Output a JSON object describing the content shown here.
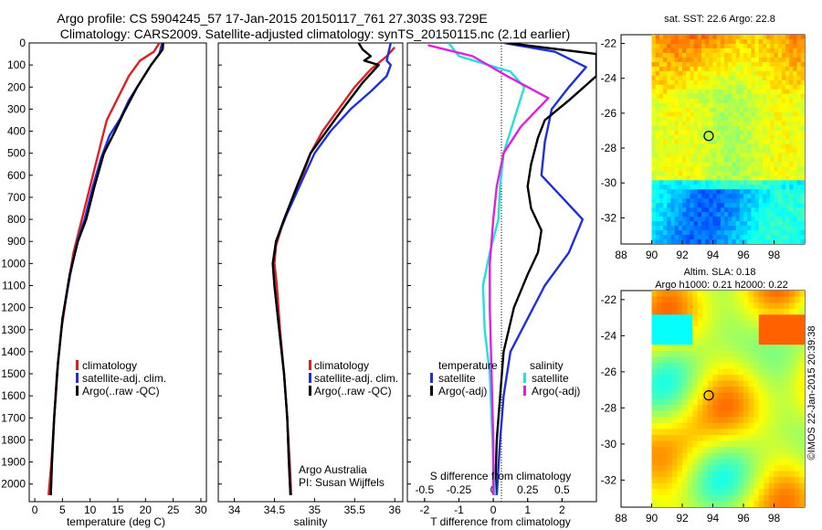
{
  "title": {
    "line1": "Argo profile: CS 5904245_57 17-Jan-2015 20150117_761 27.303S 93.729E",
    "line2": "Climatology: CARS2009. Satellite-adjusted climatology: synTS_20150115.nc (2.1d earlier)"
  },
  "colors": {
    "climatology": "#e02020",
    "satellite": "#1f2fe0",
    "argo": "#000000",
    "sat_salinity": "#20e0e0",
    "argo_salinity": "#e020e0"
  },
  "chart_data": [
    {
      "type": "line",
      "panel": "temperature",
      "xlabel": "temperature (deg C)",
      "ylabel": "",
      "xlim": [
        -1,
        31
      ],
      "ylim": [
        2080,
        0
      ],
      "xticks": [
        "0",
        "5",
        "10",
        "15",
        "20",
        "25",
        "30"
      ],
      "yticks": [
        "0",
        "100",
        "200",
        "300",
        "400",
        "500",
        "600",
        "700",
        "800",
        "900",
        "1000",
        "1100",
        "1200",
        "1300",
        "1400",
        "1500",
        "1600",
        "1700",
        "1800",
        "1900",
        "2000"
      ],
      "legend": [
        "climatology",
        "satellite-adj. clim.",
        "Argo(..raw -QC)"
      ],
      "series": [
        {
          "name": "climatology",
          "color": "#e02020",
          "points": [
            [
              22.5,
              0
            ],
            [
              21.5,
              40
            ],
            [
              19,
              80
            ],
            [
              17,
              150
            ],
            [
              15,
              250
            ],
            [
              13,
              350
            ],
            [
              12,
              450
            ],
            [
              11,
              550
            ],
            [
              9.5,
              700
            ],
            [
              8,
              850
            ],
            [
              7,
              950
            ],
            [
              6,
              1100
            ],
            [
              4.8,
              1300
            ],
            [
              4,
              1500
            ],
            [
              3.5,
              1700
            ],
            [
              3,
              1900
            ],
            [
              2.5,
              2050
            ]
          ]
        },
        {
          "name": "satellite-adj. clim.",
          "color": "#1f2fe0",
          "points": [
            [
              23,
              0
            ],
            [
              22.5,
              50
            ],
            [
              21,
              100
            ],
            [
              19,
              180
            ],
            [
              17,
              260
            ],
            [
              15.5,
              340
            ],
            [
              13.5,
              420
            ],
            [
              12,
              520
            ],
            [
              10.5,
              650
            ],
            [
              9,
              800
            ],
            [
              7.7,
              900
            ],
            [
              6.4,
              1050
            ],
            [
              5,
              1250
            ],
            [
              4.2,
              1450
            ],
            [
              3.5,
              1700
            ],
            [
              3.1,
              1900
            ],
            [
              2.9,
              2050
            ]
          ]
        },
        {
          "name": "Argo(..raw -QC)",
          "color": "#000000",
          "points": [
            [
              23.2,
              0
            ],
            [
              23.1,
              30
            ],
            [
              21,
              100
            ],
            [
              18.5,
              200
            ],
            [
              16,
              320
            ],
            [
              14.5,
              400
            ],
            [
              12.5,
              500
            ],
            [
              10.8,
              650
            ],
            [
              9.3,
              800
            ],
            [
              7.8,
              900
            ],
            [
              6.3,
              1050
            ],
            [
              5,
              1250
            ],
            [
              4.2,
              1450
            ],
            [
              3.5,
              1700
            ],
            [
              3.1,
              1900
            ],
            [
              2.9,
              2050
            ]
          ]
        }
      ]
    },
    {
      "type": "line",
      "panel": "salinity",
      "xlabel": "salinity",
      "ylabel": "",
      "xlim": [
        33.8,
        36.1
      ],
      "ylim": [
        2080,
        0
      ],
      "xticks": [
        "34",
        "34.5",
        "35",
        "35.5",
        "36"
      ],
      "legend": [
        "climatology",
        "satellite-adj. clim.",
        "Argo(..raw -QC)"
      ],
      "annotation": [
        "Argo Australia",
        "PI: Susan Wijffels"
      ],
      "series": [
        {
          "name": "climatology",
          "color": "#e02020",
          "points": [
            [
              36.0,
              20
            ],
            [
              35.9,
              60
            ],
            [
              35.7,
              120
            ],
            [
              35.5,
              200
            ],
            [
              35.3,
              300
            ],
            [
              35.1,
              400
            ],
            [
              34.95,
              500
            ],
            [
              34.8,
              650
            ],
            [
              34.62,
              800
            ],
            [
              34.52,
              920
            ],
            [
              34.5,
              1000
            ],
            [
              34.53,
              1100
            ],
            [
              34.57,
              1300
            ],
            [
              34.62,
              1500
            ],
            [
              34.66,
              1700
            ],
            [
              34.69,
              1900
            ],
            [
              34.71,
              2050
            ]
          ]
        },
        {
          "name": "satellite-adj. clim.",
          "color": "#1f2fe0",
          "points": [
            [
              35.95,
              0
            ],
            [
              35.9,
              80
            ],
            [
              35.95,
              100
            ],
            [
              35.9,
              150
            ],
            [
              35.7,
              220
            ],
            [
              35.45,
              300
            ],
            [
              35.2,
              400
            ],
            [
              35.0,
              500
            ],
            [
              34.85,
              620
            ],
            [
              34.65,
              780
            ],
            [
              34.52,
              900
            ],
            [
              34.48,
              1000
            ],
            [
              34.5,
              1100
            ],
            [
              34.56,
              1300
            ],
            [
              34.62,
              1500
            ],
            [
              34.66,
              1700
            ],
            [
              34.68,
              1900
            ],
            [
              34.7,
              2050
            ]
          ]
        },
        {
          "name": "Argo(..raw -QC)",
          "color": "#000000",
          "points": [
            [
              35.55,
              0
            ],
            [
              35.6,
              30
            ],
            [
              35.7,
              60
            ],
            [
              35.62,
              80
            ],
            [
              35.8,
              100
            ],
            [
              35.6,
              180
            ],
            [
              35.35,
              300
            ],
            [
              35.15,
              400
            ],
            [
              34.95,
              500
            ],
            [
              34.78,
              650
            ],
            [
              34.62,
              800
            ],
            [
              34.52,
              900
            ],
            [
              34.48,
              1000
            ],
            [
              34.5,
              1100
            ],
            [
              34.56,
              1300
            ],
            [
              34.62,
              1500
            ],
            [
              34.66,
              1700
            ],
            [
              34.68,
              1900
            ],
            [
              34.7,
              2050
            ]
          ]
        }
      ]
    },
    {
      "type": "line",
      "panel": "difference",
      "xlabel": "T difference from climatology",
      "xlabel_top": "S difference from climatology",
      "ylabel": "",
      "xlim": [
        -2.5,
        3
      ],
      "ylim": [
        2080,
        0
      ],
      "xticks": [
        "-2",
        "-1",
        "0",
        "1",
        "2"
      ],
      "s_ticks": [
        "-0.5",
        "-0.25",
        "0",
        "0.25",
        "0.5"
      ],
      "legend": {
        "temperature": "temperature",
        "salinity": "salinity",
        "entries": [
          "satellite",
          "Argo(-adj)",
          "satellite",
          "Argo(-adj)"
        ]
      },
      "series": [
        {
          "name": "temperature satellite",
          "color": "#1f2fe0",
          "points": [
            [
              0.3,
              0
            ],
            [
              1.8,
              40
            ],
            [
              2.7,
              110
            ],
            [
              2.2,
              200
            ],
            [
              1.7,
              300
            ],
            [
              1.5,
              450
            ],
            [
              1.4,
              600
            ],
            [
              2.0,
              700
            ],
            [
              2.6,
              800
            ],
            [
              2.2,
              950
            ],
            [
              1.5,
              1100
            ],
            [
              1.0,
              1250
            ],
            [
              0.5,
              1400
            ],
            [
              0.3,
              1600
            ],
            [
              0.2,
              1800
            ],
            [
              0.1,
              2050
            ]
          ]
        },
        {
          "name": "temperature Argo(-adj)",
          "color": "#000000",
          "points": [
            [
              0.4,
              0
            ],
            [
              3.0,
              50
            ],
            [
              3.0,
              150
            ],
            [
              2.2,
              260
            ],
            [
              1.5,
              350
            ],
            [
              1.3,
              430
            ],
            [
              1.1,
              550
            ],
            [
              1.0,
              650
            ],
            [
              1.1,
              750
            ],
            [
              1.4,
              850
            ],
            [
              1.3,
              950
            ],
            [
              1.0,
              1050
            ],
            [
              0.6,
              1200
            ],
            [
              0.3,
              1400
            ],
            [
              0.2,
              1600
            ],
            [
              0.1,
              1800
            ],
            [
              0.05,
              2050
            ]
          ]
        },
        {
          "name": "salinity satellite",
          "color": "#20e0e0",
          "points": [
            [
              -1.3,
              0
            ],
            [
              -1.0,
              60
            ],
            [
              0.5,
              130
            ],
            [
              0.9,
              200
            ],
            [
              0.6,
              350
            ],
            [
              0.3,
              500
            ],
            [
              0.2,
              650
            ],
            [
              0.15,
              800
            ],
            [
              -0.1,
              950
            ],
            [
              -0.3,
              1100
            ],
            [
              -0.25,
              1300
            ],
            [
              -0.1,
              1500
            ],
            [
              -0.05,
              1700
            ],
            [
              0,
              1900
            ],
            [
              0.05,
              2050
            ]
          ]
        },
        {
          "name": "salinity Argo(-adj)",
          "color": "#e020e0",
          "points": [
            [
              -1.9,
              10
            ],
            [
              -0.6,
              60
            ],
            [
              0.4,
              150
            ],
            [
              1.6,
              250
            ],
            [
              0.8,
              380
            ],
            [
              0.3,
              500
            ],
            [
              0.1,
              650
            ],
            [
              0,
              800
            ],
            [
              -0.1,
              1000
            ],
            [
              -0.1,
              1200
            ],
            [
              -0.05,
              1500
            ],
            [
              0,
              1800
            ],
            [
              0,
              2050
            ]
          ]
        }
      ]
    },
    {
      "type": "heatmap",
      "panel": "sst_map",
      "title": "sat. SST: 22.6 Argo: 22.8",
      "xlim": [
        88,
        100
      ],
      "ylim": [
        -33.5,
        -21.5
      ],
      "xticks": [
        "88",
        "90",
        "92",
        "94",
        "96",
        "98"
      ],
      "yticks": [
        "-22",
        "-24",
        "-26",
        "-28",
        "-30",
        "-32"
      ],
      "marker": {
        "lon": 93.729,
        "lat": -27.303
      }
    },
    {
      "type": "heatmap",
      "panel": "sla_map",
      "title": "Altim. SLA: 0.18",
      "subtitle": "Argo h1000: 0.21 h2000: 0.22",
      "xlim": [
        88,
        100
      ],
      "ylim": [
        -33.5,
        -21.5
      ],
      "xticks": [
        "88",
        "90",
        "92",
        "94",
        "96",
        "98"
      ],
      "yticks": [
        "-22",
        "-24",
        "-26",
        "-28",
        "-30",
        "-32"
      ],
      "marker": {
        "lon": 93.729,
        "lat": -27.303
      }
    }
  ],
  "watermark": "©IMOS 22-Jan-2015 20:39:38"
}
